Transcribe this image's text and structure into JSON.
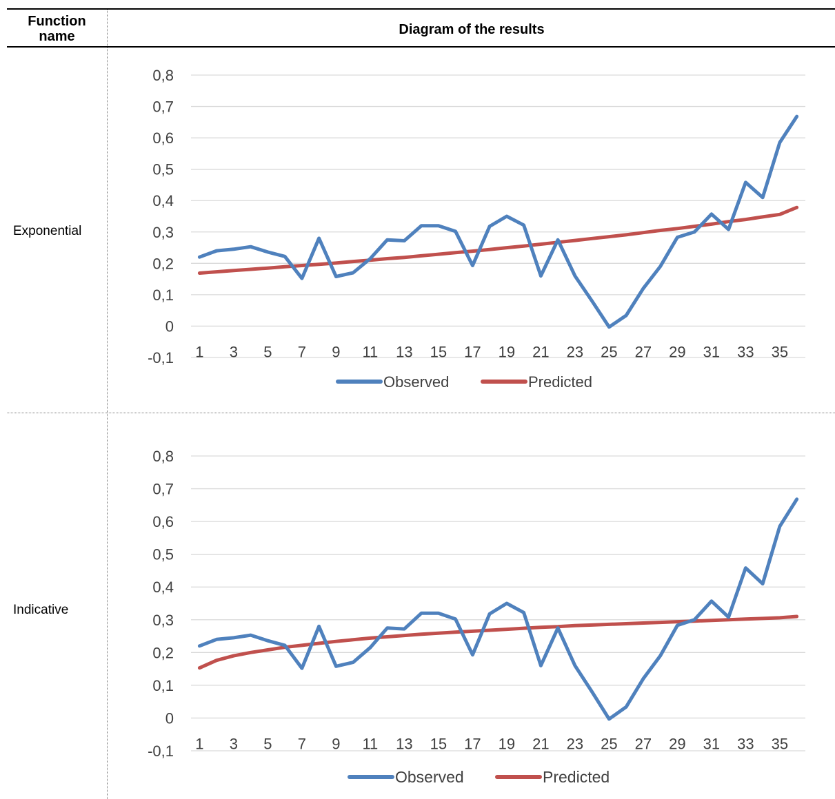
{
  "table": {
    "col1_header": "Function\nname",
    "col2_header": "Diagram of the results"
  },
  "rows": [
    {
      "label": "Exponential"
    },
    {
      "label": "Indicative"
    }
  ],
  "colors": {
    "observed": "#4F81BD",
    "predicted": "#C0504D",
    "grid": "#D9D9D9",
    "tick_text": "#404040"
  },
  "chart_data": [
    {
      "type": "line",
      "title": "",
      "xlabel": "",
      "ylabel": "",
      "x": [
        1,
        2,
        3,
        4,
        5,
        6,
        7,
        8,
        9,
        10,
        11,
        12,
        13,
        14,
        15,
        16,
        17,
        18,
        19,
        20,
        21,
        22,
        23,
        24,
        25,
        26,
        27,
        28,
        29,
        30,
        31,
        32,
        33,
        34,
        35,
        36
      ],
      "x_tick_labels": [
        "1",
        "3",
        "5",
        "7",
        "9",
        "11",
        "13",
        "15",
        "17",
        "19",
        "21",
        "23",
        "25",
        "27",
        "29",
        "31",
        "33",
        "35"
      ],
      "y_tick_labels": [
        "-0,1",
        "0",
        "0,1",
        "0,2",
        "0,3",
        "0,4",
        "0,5",
        "0,6",
        "0,7",
        "0,8"
      ],
      "ylim": [
        -0.1,
        0.8
      ],
      "grid": true,
      "legend_position": "bottom",
      "series": [
        {
          "name": "Observed",
          "values": [
            0.22,
            0.24,
            0.245,
            0.253,
            0.236,
            0.222,
            0.152,
            0.28,
            0.158,
            0.17,
            0.215,
            0.275,
            0.272,
            0.32,
            0.32,
            0.302,
            0.193,
            0.318,
            0.35,
            0.322,
            0.16,
            0.275,
            0.16,
            0.08,
            -0.003,
            0.034,
            0.12,
            0.19,
            0.283,
            0.3,
            0.357,
            0.308,
            0.458,
            0.41,
            0.585,
            0.668
          ]
        },
        {
          "name": "Predicted",
          "values": [
            0.169,
            0.173,
            0.177,
            0.181,
            0.185,
            0.189,
            0.193,
            0.197,
            0.201,
            0.206,
            0.21,
            0.215,
            0.219,
            0.224,
            0.229,
            0.234,
            0.239,
            0.244,
            0.25,
            0.255,
            0.261,
            0.267,
            0.273,
            0.279,
            0.285,
            0.291,
            0.298,
            0.305,
            0.311,
            0.318,
            0.325,
            0.333,
            0.34,
            0.348,
            0.356,
            0.378
          ]
        }
      ]
    },
    {
      "type": "line",
      "title": "",
      "xlabel": "",
      "ylabel": "",
      "x": [
        1,
        2,
        3,
        4,
        5,
        6,
        7,
        8,
        9,
        10,
        11,
        12,
        13,
        14,
        15,
        16,
        17,
        18,
        19,
        20,
        21,
        22,
        23,
        24,
        25,
        26,
        27,
        28,
        29,
        30,
        31,
        32,
        33,
        34,
        35,
        36
      ],
      "x_tick_labels": [
        "1",
        "3",
        "5",
        "7",
        "9",
        "11",
        "13",
        "15",
        "17",
        "19",
        "21",
        "23",
        "25",
        "27",
        "29",
        "31",
        "33",
        "35"
      ],
      "y_tick_labels": [
        "-0,1",
        "0",
        "0,1",
        "0,2",
        "0,3",
        "0,4",
        "0,5",
        "0,6",
        "0,7",
        "0,8"
      ],
      "ylim": [
        -0.1,
        0.8
      ],
      "grid": true,
      "legend_position": "bottom",
      "series": [
        {
          "name": "Observed",
          "values": [
            0.22,
            0.24,
            0.245,
            0.253,
            0.236,
            0.222,
            0.152,
            0.28,
            0.158,
            0.17,
            0.215,
            0.275,
            0.272,
            0.32,
            0.32,
            0.302,
            0.193,
            0.318,
            0.35,
            0.322,
            0.16,
            0.275,
            0.16,
            0.08,
            -0.003,
            0.034,
            0.12,
            0.19,
            0.283,
            0.3,
            0.357,
            0.308,
            0.458,
            0.41,
            0.585,
            0.668
          ]
        },
        {
          "name": "Predicted",
          "values": [
            0.153,
            0.176,
            0.19,
            0.2,
            0.208,
            0.216,
            0.222,
            0.228,
            0.234,
            0.239,
            0.244,
            0.248,
            0.252,
            0.256,
            0.259,
            0.262,
            0.265,
            0.268,
            0.271,
            0.274,
            0.277,
            0.279,
            0.282,
            0.284,
            0.286,
            0.288,
            0.29,
            0.292,
            0.294,
            0.296,
            0.298,
            0.3,
            0.302,
            0.304,
            0.306,
            0.31
          ]
        }
      ]
    }
  ]
}
